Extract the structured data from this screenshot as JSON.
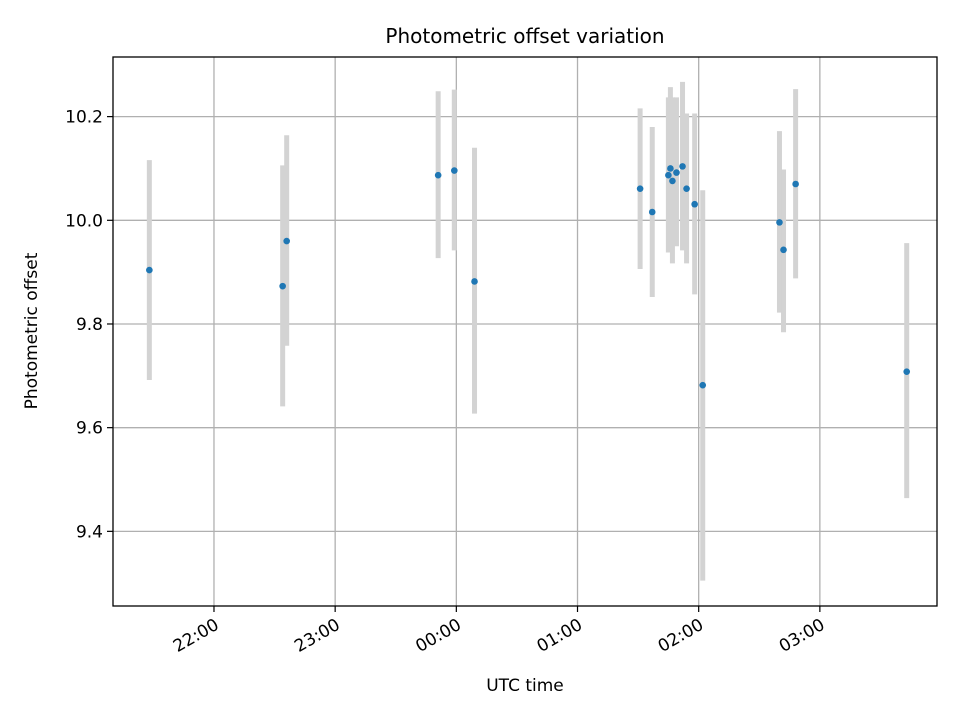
{
  "chart_data": {
    "type": "scatter",
    "title": "Photometric offset variation",
    "xlabel": "UTC time",
    "ylabel": "Photometric offset",
    "grid": true,
    "x_tick_labels": [
      "22:00",
      "23:00",
      "00:00",
      "01:00",
      "02:00",
      "03:00"
    ],
    "y_tick_labels": [
      "9.4",
      "9.6",
      "9.8",
      "10.0",
      "10.2"
    ],
    "y_ticks": [
      9.4,
      9.6,
      9.8,
      10.0,
      10.2
    ],
    "xlim": [
      "21:10",
      "03:58"
    ],
    "ylim": [
      9.256,
      10.315
    ],
    "colors": {
      "marker": "#1f77b4",
      "errorbar": "#d3d3d3",
      "grid": "#b0b0b0"
    },
    "series": [
      {
        "points": [
          {
            "x": "21:28",
            "y": 9.904,
            "yerr_low": 9.692,
            "yerr_high": 10.116
          },
          {
            "x": "22:34",
            "y": 9.873,
            "yerr_low": 9.641,
            "yerr_high": 10.106
          },
          {
            "x": "22:36",
            "y": 9.96,
            "yerr_low": 9.758,
            "yerr_high": 10.164
          },
          {
            "x": "23:51",
            "y": 10.087,
            "yerr_low": 9.927,
            "yerr_high": 10.249
          },
          {
            "x": "23:59",
            "y": 10.096,
            "yerr_low": 9.942,
            "yerr_high": 10.252
          },
          {
            "x": "00:09",
            "y": 9.882,
            "yerr_low": 9.627,
            "yerr_high": 10.14
          },
          {
            "x": "01:31",
            "y": 10.061,
            "yerr_low": 9.906,
            "yerr_high": 10.216
          },
          {
            "x": "01:37",
            "y": 10.016,
            "yerr_low": 9.852,
            "yerr_high": 10.18
          },
          {
            "x": "01:45",
            "y": 10.087,
            "yerr_low": 9.938,
            "yerr_high": 10.237
          },
          {
            "x": "01:46",
            "y": 10.1,
            "yerr_low": 9.942,
            "yerr_high": 10.257
          },
          {
            "x": "01:47",
            "y": 10.076,
            "yerr_low": 9.917,
            "yerr_high": 10.237
          },
          {
            "x": "01:49",
            "y": 10.092,
            "yerr_low": 9.95,
            "yerr_high": 10.237
          },
          {
            "x": "01:52",
            "y": 10.104,
            "yerr_low": 9.942,
            "yerr_high": 10.267
          },
          {
            "x": "01:54",
            "y": 10.061,
            "yerr_low": 9.917,
            "yerr_high": 10.206
          },
          {
            "x": "01:58",
            "y": 10.031,
            "yerr_low": 9.857,
            "yerr_high": 10.206
          },
          {
            "x": "02:02",
            "y": 9.682,
            "yerr_low": 9.305,
            "yerr_high": 10.058
          },
          {
            "x": "02:40",
            "y": 9.996,
            "yerr_low": 9.822,
            "yerr_high": 10.172
          },
          {
            "x": "02:42",
            "y": 9.943,
            "yerr_low": 9.784,
            "yerr_high": 10.098
          },
          {
            "x": "02:48",
            "y": 10.07,
            "yerr_low": 9.888,
            "yerr_high": 10.253
          },
          {
            "x": "03:43",
            "y": 9.708,
            "yerr_low": 9.464,
            "yerr_high": 9.956
          }
        ]
      }
    ]
  }
}
